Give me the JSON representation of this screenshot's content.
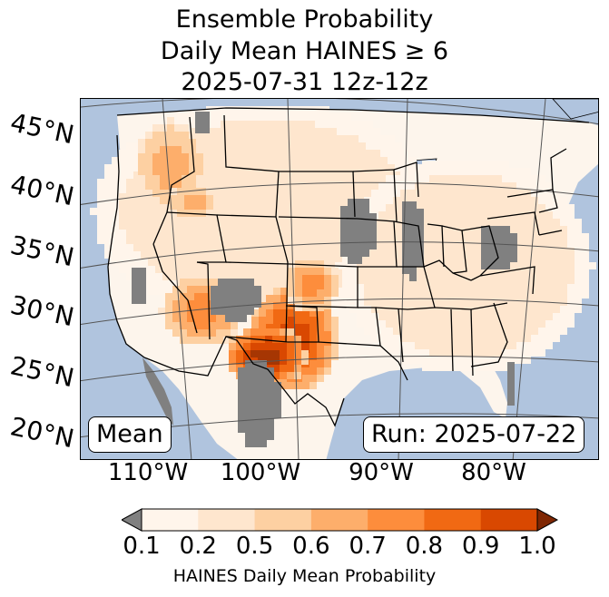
{
  "title": {
    "line1": "Ensemble Probability",
    "line2": "Daily Mean HAINES ≥ 6",
    "line3": "2025-07-31 12z-12z"
  },
  "map": {
    "lat_labels": [
      "45°N",
      "40°N",
      "35°N",
      "30°N",
      "25°N",
      "20°N"
    ],
    "lon_labels": [
      "110°W",
      "100°W",
      "90°W",
      "80°W"
    ],
    "stat_badge": "Mean",
    "run_badge": "Run: 2025-07-22",
    "colors": {
      "ocean": "#b0c4de",
      "land_background": "#fdf5ec",
      "no_data": "#808080"
    }
  },
  "colorbar": {
    "label": "HAINES Daily Mean Probability",
    "ticks": [
      "0.1",
      "0.2",
      "0.5",
      "0.6",
      "0.7",
      "0.8",
      "0.9",
      "1.0"
    ],
    "colors": [
      "#fff5eb",
      "#fee6ce",
      "#fdd0a2",
      "#fdae6b",
      "#fd8d3c",
      "#f16913",
      "#d94801",
      "#a63603"
    ],
    "under_color": "#808080",
    "over_color": "#7f2704"
  }
}
